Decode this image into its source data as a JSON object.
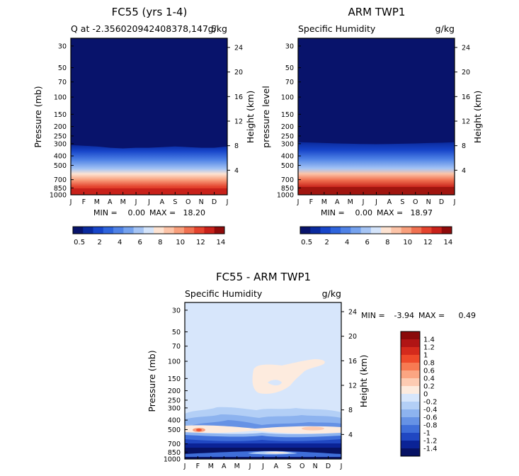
{
  "chart_data": [
    {
      "type": "heatmap",
      "title": "FC55 (yrs 1-4)",
      "subtitle_left": "Q at -2.356020942408378,147.5",
      "subtitle_right": "g/kg",
      "ylabel_left": "Pressure (mb)",
      "ylabel_right": "Height (km)",
      "pressure_ticks": [
        30,
        50,
        70,
        100,
        150,
        200,
        250,
        300,
        400,
        500,
        700,
        850,
        1000
      ],
      "height_ticks": [
        24,
        20,
        16,
        12,
        8,
        4
      ],
      "x_ticks": [
        "J",
        "F",
        "M",
        "A",
        "M",
        "J",
        "J",
        "A",
        "S",
        "O",
        "N",
        "D",
        "J"
      ],
      "min_label": "MIN =",
      "min_value": "0.00",
      "max_label": "MAX =",
      "max_value": "18.20",
      "moisture_top_mb": [
        310,
        315,
        320,
        330,
        335,
        330,
        330,
        325,
        320,
        325,
        330,
        330,
        320
      ],
      "colorbar_ticks": [
        "0.5",
        "2",
        "4",
        "6",
        "8",
        "10",
        "12",
        "14"
      ]
    },
    {
      "type": "heatmap",
      "title": "ARM TWP1",
      "subtitle_left": "Specific Humidity",
      "subtitle_right": "g/kg",
      "ylabel_left": "pressure level",
      "ylabel_right": "Height (km)",
      "pressure_ticks": [
        30,
        50,
        70,
        100,
        150,
        200,
        250,
        300,
        400,
        500,
        700,
        850,
        1000
      ],
      "height_ticks": [
        24,
        20,
        16,
        12,
        8,
        4
      ],
      "x_ticks": [
        "J",
        "F",
        "M",
        "A",
        "M",
        "J",
        "J",
        "A",
        "S",
        "O",
        "N",
        "D",
        "J"
      ],
      "min_label": "MIN =",
      "min_value": "0.00",
      "max_label": "MAX =",
      "max_value": "18.97",
      "moisture_top_mb": [
        290,
        292,
        295,
        298,
        300,
        302,
        303,
        302,
        300,
        298,
        295,
        293,
        290
      ],
      "colorbar_ticks": [
        "0.5",
        "2",
        "4",
        "6",
        "8",
        "10",
        "12",
        "14"
      ]
    },
    {
      "type": "heatmap",
      "title": "FC55 - ARM TWP1",
      "subtitle_left": "Specific Humidity",
      "subtitle_right": "g/kg",
      "ylabel_left": "Pressure (mb)",
      "ylabel_right": "Height (km)",
      "pressure_ticks": [
        30,
        50,
        70,
        100,
        150,
        200,
        250,
        300,
        400,
        500,
        700,
        850,
        1000
      ],
      "height_ticks": [
        24,
        20,
        16,
        12,
        8,
        4
      ],
      "x_ticks": [
        "J",
        "F",
        "M",
        "A",
        "M",
        "J",
        "J",
        "A",
        "S",
        "O",
        "N",
        "D",
        "J"
      ],
      "min_label": "MIN =",
      "min_value": "-3.94",
      "max_label": "MAX =",
      "max_value": "0.49",
      "legend_labels": [
        "1.4",
        "1.2",
        "1",
        "0.8",
        "0.6",
        "0.4",
        "0.2",
        "0",
        "-0.2",
        "-0.4",
        "-0.6",
        "-0.8",
        "-1",
        "-1.2",
        "-1.4"
      ]
    }
  ],
  "colors": {
    "seq": [
      "#08136b",
      "#0a2a9e",
      "#1745c9",
      "#2e64dc",
      "#4f82e6",
      "#75a2ee",
      "#a5c4f4",
      "#d4e4fa",
      "#fde3d2",
      "#fcc4a8",
      "#f89f7c",
      "#f07151",
      "#e4432e",
      "#c8211a",
      "#8f0b0b"
    ],
    "div": [
      "#8a0a0a",
      "#b01515",
      "#d42a1c",
      "#ee4a2a",
      "#f77a52",
      "#fba582",
      "#fdcbb2",
      "#fdebde",
      "#d7e6fb",
      "#b3cff6",
      "#8db3ef",
      "#6692e5",
      "#3f6ed9",
      "#2047c2",
      "#0b2396",
      "#071264"
    ]
  }
}
